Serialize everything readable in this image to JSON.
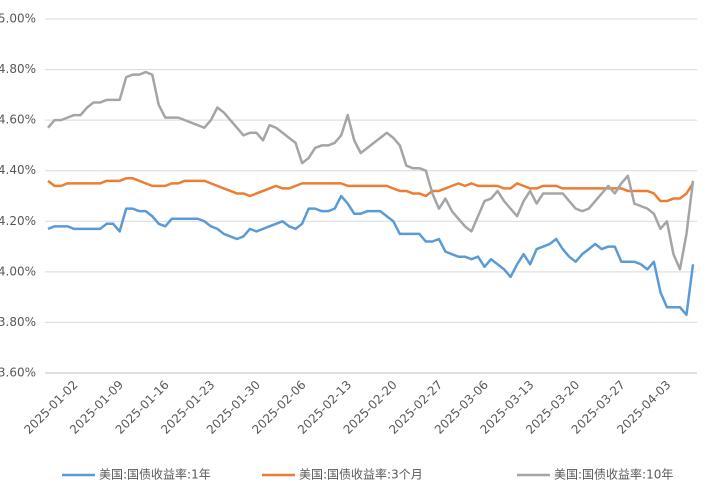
{
  "chart_data": {
    "type": "line",
    "categories": [
      "2025-01-02",
      null,
      null,
      null,
      null,
      null,
      null,
      "2025-01-09",
      null,
      null,
      null,
      null,
      null,
      null,
      "2025-01-16",
      null,
      null,
      null,
      null,
      null,
      null,
      "2025-01-23",
      null,
      null,
      null,
      null,
      null,
      null,
      "2025-01-30",
      null,
      null,
      null,
      null,
      null,
      null,
      "2025-02-06",
      null,
      null,
      null,
      null,
      null,
      null,
      "2025-02-13",
      null,
      null,
      null,
      null,
      null,
      null,
      "2025-02-20",
      null,
      null,
      null,
      null,
      null,
      null,
      "2025-02-27",
      null,
      null,
      null,
      null,
      null,
      null,
      "2025-03-06",
      null,
      null,
      null,
      null,
      null,
      null,
      "2025-03-13",
      null,
      null,
      null,
      null,
      null,
      null,
      "2025-03-20",
      null,
      null,
      null,
      null,
      null,
      null,
      "2025-03-27",
      null,
      null,
      null,
      null,
      null,
      null,
      "2025-04-03",
      null,
      null,
      null,
      null,
      null,
      null,
      null,
      null
    ],
    "series": [
      {
        "name": "美国:国债收益率:1年",
        "color": "#5b9bd5",
        "values": [
          4.17,
          4.18,
          4.18,
          4.18,
          4.17,
          4.17,
          4.17,
          4.17,
          4.17,
          4.19,
          4.19,
          4.16,
          4.25,
          4.25,
          4.24,
          4.24,
          4.22,
          4.19,
          4.18,
          4.21,
          4.21,
          4.21,
          4.21,
          4.21,
          4.2,
          4.18,
          4.17,
          4.15,
          4.14,
          4.13,
          4.14,
          4.17,
          4.16,
          4.17,
          4.18,
          4.19,
          4.2,
          4.18,
          4.17,
          4.19,
          4.25,
          4.25,
          4.24,
          4.24,
          4.25,
          4.3,
          4.27,
          4.23,
          4.23,
          4.24,
          4.24,
          4.24,
          4.22,
          4.2,
          4.15,
          4.15,
          4.15,
          4.15,
          4.12,
          4.12,
          4.13,
          4.08,
          4.07,
          4.06,
          4.06,
          4.05,
          4.06,
          4.02,
          4.05,
          4.03,
          4.01,
          3.98,
          4.03,
          4.07,
          4.03,
          4.09,
          4.1,
          4.11,
          4.13,
          4.09,
          4.06,
          4.04,
          4.07,
          4.09,
          4.11,
          4.09,
          4.1,
          4.1,
          4.04,
          4.04,
          4.04,
          4.03,
          4.01,
          4.04,
          3.92,
          3.86,
          3.86,
          3.86,
          3.83,
          4.03
        ]
      },
      {
        "name": "美国:国债收益率:3个月",
        "color": "#ed7d31",
        "values": [
          4.36,
          4.34,
          4.34,
          4.35,
          4.35,
          4.35,
          4.35,
          4.35,
          4.35,
          4.36,
          4.36,
          4.36,
          4.37,
          4.37,
          4.36,
          4.35,
          4.34,
          4.34,
          4.34,
          4.35,
          4.35,
          4.36,
          4.36,
          4.36,
          4.36,
          4.35,
          4.34,
          4.33,
          4.32,
          4.31,
          4.31,
          4.3,
          4.31,
          4.32,
          4.33,
          4.34,
          4.33,
          4.33,
          4.34,
          4.35,
          4.35,
          4.35,
          4.35,
          4.35,
          4.35,
          4.35,
          4.34,
          4.34,
          4.34,
          4.34,
          4.34,
          4.34,
          4.34,
          4.33,
          4.32,
          4.32,
          4.31,
          4.31,
          4.3,
          4.32,
          4.32,
          4.33,
          4.34,
          4.35,
          4.34,
          4.35,
          4.34,
          4.34,
          4.34,
          4.34,
          4.33,
          4.33,
          4.35,
          4.34,
          4.33,
          4.33,
          4.34,
          4.34,
          4.34,
          4.33,
          4.33,
          4.33,
          4.33,
          4.33,
          4.33,
          4.33,
          4.33,
          4.33,
          4.33,
          4.32,
          4.32,
          4.32,
          4.32,
          4.31,
          4.28,
          4.28,
          4.29,
          4.29,
          4.31,
          4.35
        ]
      },
      {
        "name": "美国:国债收益率:10年",
        "color": "#a5a5a5",
        "values": [
          4.57,
          4.6,
          4.6,
          4.61,
          4.62,
          4.62,
          4.65,
          4.67,
          4.67,
          4.68,
          4.68,
          4.68,
          4.77,
          4.78,
          4.78,
          4.79,
          4.78,
          4.66,
          4.61,
          4.61,
          4.61,
          4.6,
          4.59,
          4.58,
          4.57,
          4.6,
          4.65,
          4.63,
          4.6,
          4.57,
          4.54,
          4.55,
          4.55,
          4.52,
          4.58,
          4.57,
          4.55,
          4.53,
          4.51,
          4.43,
          4.45,
          4.49,
          4.5,
          4.5,
          4.51,
          4.54,
          4.62,
          4.52,
          4.47,
          4.49,
          4.51,
          4.53,
          4.55,
          4.53,
          4.5,
          4.42,
          4.41,
          4.41,
          4.4,
          4.31,
          4.25,
          4.29,
          4.24,
          4.21,
          4.18,
          4.16,
          4.22,
          4.28,
          4.29,
          4.32,
          4.28,
          4.25,
          4.22,
          4.28,
          4.32,
          4.27,
          4.31,
          4.31,
          4.31,
          4.31,
          4.28,
          4.25,
          4.24,
          4.25,
          4.28,
          4.31,
          4.34,
          4.31,
          4.35,
          4.38,
          4.27,
          4.26,
          4.25,
          4.23,
          4.17,
          4.2,
          4.07,
          4.01,
          4.15,
          4.36
        ]
      }
    ],
    "ylim": [
      3.6,
      5.0
    ],
    "yticks": [
      {
        "value": 3.6,
        "label": "3.60%"
      },
      {
        "value": 3.8,
        "label": "3.80%"
      },
      {
        "value": 4.0,
        "label": "4.00%"
      },
      {
        "value": 4.2,
        "label": "4.20%"
      },
      {
        "value": 4.4,
        "label": "4.40%"
      },
      {
        "value": 4.6,
        "label": "4.60%"
      },
      {
        "value": 4.8,
        "label": "4.80%"
      },
      {
        "value": 5.0,
        "label": "5.00%"
      }
    ],
    "grid": true,
    "legend": "bottom"
  }
}
